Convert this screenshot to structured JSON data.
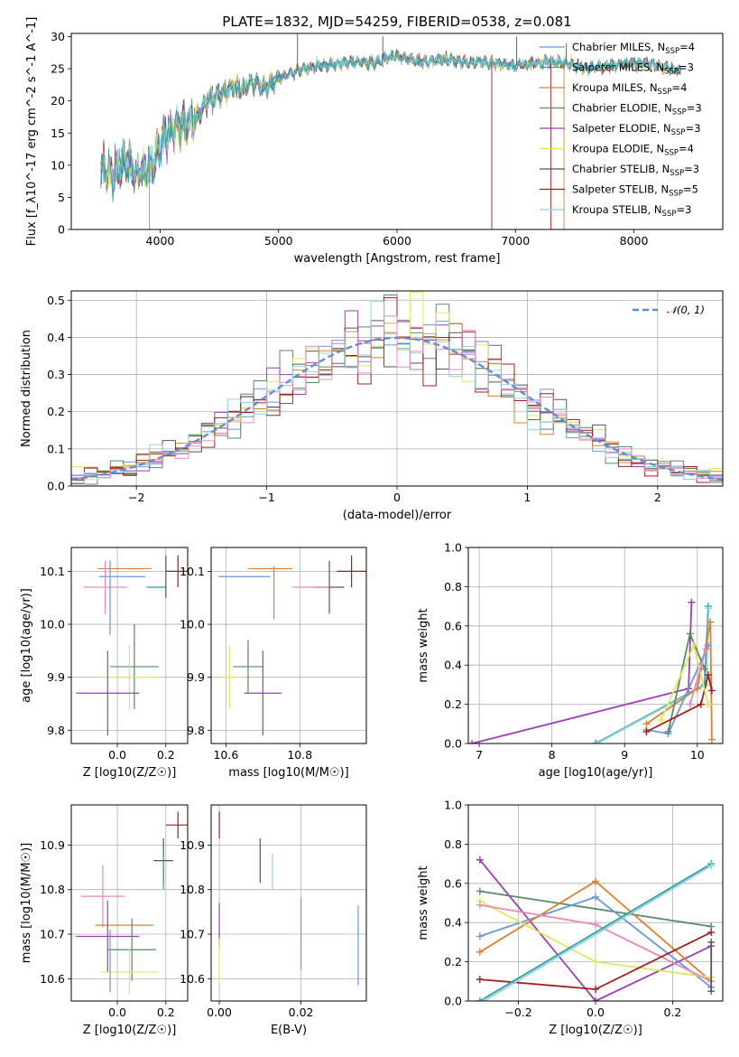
{
  "figure_title": "PLATE=1832, MJD=54259, FIBERID=0538, z=0.081",
  "colors": {
    "Chabrier MILES": "#6b96d9",
    "Salpeter MILES": "#2f9fa8",
    "Kroupa MILES": "#e07f2a",
    "Chabrier ELODIE": "#5a8a68",
    "Salpeter ELODIE": "#9b3fb3",
    "Kroupa ELODIE": "#d9ea5a",
    "Chabrier STELIB": "#555555",
    "Salpeter STELIB": "#a61c1c",
    "Kroupa STELIB": "#8fd4dc",
    "pink": "#e88ab8"
  },
  "chart_data": [
    {
      "id": "spectrum",
      "type": "line",
      "xlabel": "wavelength [Angstrom, rest frame]",
      "ylabel": "Flux [f_λ10^-17 erg cm^-2 s^-1 A^-1]",
      "xlim": [
        3250,
        8750
      ],
      "ylim": [
        0,
        30.5
      ],
      "xticks": [
        4000,
        5000,
        6000,
        7000,
        8000
      ],
      "yticks": [
        0,
        5,
        10,
        15,
        20,
        25,
        30
      ],
      "legend_position": "right",
      "legend": [
        {
          "label": "Chabrier MILES, N",
          "sub": "SSP",
          "tail": "=4",
          "color": "#6b96d9"
        },
        {
          "label": "Salpeter MILES, N",
          "sub": "SSP",
          "tail": "=3",
          "color": "#2f9fa8"
        },
        {
          "label": "Kroupa MILES, N",
          "sub": "SSP",
          "tail": "=4",
          "color": "#e07f2a"
        },
        {
          "label": "Chabrier ELODIE, N",
          "sub": "SSP",
          "tail": "=3",
          "color": "#5a8a68"
        },
        {
          "label": "Salpeter ELODIE, N",
          "sub": "SSP",
          "tail": "=3",
          "color": "#9b3fb3"
        },
        {
          "label": "Kroupa ELODIE, N",
          "sub": "SSP",
          "tail": "=4",
          "color": "#d9ea5a"
        },
        {
          "label": "Chabrier STELIB, N",
          "sub": "SSP",
          "tail": "=3",
          "color": "#555555"
        },
        {
          "label": "Salpeter STELIB, N",
          "sub": "SSP",
          "tail": "=5",
          "color": "#a61c1c"
        },
        {
          "label": "Kroupa STELIB, N",
          "sub": "SSP",
          "tail": "=3",
          "color": "#8fd4dc"
        }
      ],
      "envelope": {
        "x": [
          3500,
          3600,
          3700,
          3800,
          3900,
          3950,
          4000,
          4100,
          4200,
          4300,
          4400,
          4500,
          4600,
          4700,
          4800,
          4900,
          5000,
          5200,
          5400,
          5600,
          5800,
          6000,
          6200,
          6400,
          6600,
          6800,
          7000,
          7200,
          7400,
          7600,
          7800,
          8000,
          8200,
          8400
        ],
        "y": [
          10.0,
          8.5,
          10.5,
          9.0,
          9.5,
          10.5,
          13.5,
          15.5,
          16.5,
          17.0,
          20.0,
          21.0,
          22.0,
          22.0,
          23.0,
          22.0,
          23.5,
          25.0,
          25.5,
          26.0,
          26.0,
          27.0,
          26.0,
          26.5,
          26.0,
          26.0,
          25.5,
          26.0,
          26.0,
          25.0,
          25.5,
          26.0,
          25.5,
          24.5
        ]
      },
      "spikes": [
        {
          "x": 5160,
          "top": 30.5,
          "color": "#555555"
        },
        {
          "x": 5880,
          "top": 30.0,
          "color": "#555555"
        },
        {
          "x": 7010,
          "top": 30.0,
          "color": "#555555"
        },
        {
          "x": 7430,
          "top": 29.0,
          "color": "#555555"
        },
        {
          "x": 3910,
          "bottom": 0,
          "color": "#e07f2a"
        },
        {
          "x": 6800,
          "bottom": 0,
          "color": "#a61c1c"
        },
        {
          "x": 7300,
          "bottom": 0,
          "color": "#a61c1c"
        },
        {
          "x": 7410,
          "bottom": 0,
          "color": "#e07f2a"
        }
      ]
    },
    {
      "id": "residual-histogram",
      "type": "histogram",
      "xlabel": "(data-model)/error",
      "ylabel": "Normed distribution",
      "xlim": [
        -2.5,
        2.5
      ],
      "ylim": [
        0,
        0.525
      ],
      "xticks": [
        -2,
        -1,
        0,
        1,
        2
      ],
      "yticks": [
        0.0,
        0.1,
        0.2,
        0.3,
        0.4,
        0.5
      ],
      "grid": true,
      "legend_position": "top-right",
      "legend": [
        {
          "label": "𝒩(0, 1)",
          "style": "dashed",
          "color": "#5b8fd8"
        }
      ],
      "bins": 50,
      "gaussian": {
        "mu": 0,
        "sigma": 1,
        "color": "#5b8fd8"
      },
      "series_colors": [
        "#6b96d9",
        "#e07f2a",
        "#5a8a68",
        "#9b3fb3",
        "#d9ea5a",
        "#555555",
        "#a61c1c",
        "#8fd4dc",
        "#e88ab8"
      ]
    },
    {
      "id": "age-vs-Z",
      "type": "errorbar",
      "xlabel": "Z [log10(Z/Z☉)]",
      "ylabel": "age [log10(age/yr)]",
      "xlim": [
        -0.19,
        0.29
      ],
      "ylim": [
        9.775,
        10.145
      ],
      "xticks": [
        0.0,
        0.2
      ],
      "yticks": [
        9.8,
        9.9,
        10.0,
        10.1
      ],
      "grid": true,
      "points": [
        {
          "x": 0.03,
          "y": 10.105,
          "xerr": 0.11,
          "yerr": 0.0,
          "color": "#e07f2a"
        },
        {
          "x": 0.02,
          "y": 10.09,
          "xerr": 0.095,
          "yerr": 0.0,
          "color": "#6b96d9"
        },
        {
          "x": 0.16,
          "y": 10.07,
          "xerr": 0.04,
          "yerr": 0.0,
          "color": "#2f9fa8"
        },
        {
          "x": 0.25,
          "y": 10.1,
          "xerr": 0.05,
          "yerr": 0.03,
          "color": "#a61c1c"
        },
        {
          "x": 0.2,
          "y": 10.09,
          "xerr": 0.0,
          "yerr": 0.04,
          "color": "#555555"
        },
        {
          "x": -0.05,
          "y": 10.07,
          "xerr": 0.09,
          "yerr": 0.05,
          "color": "#e88ab8"
        },
        {
          "x": -0.03,
          "y": 10.05,
          "xerr": 0.0,
          "yerr": 0.07,
          "color": "#6b96d9"
        },
        {
          "x": 0.07,
          "y": 9.92,
          "xerr": 0.1,
          "yerr": 0.08,
          "color": "#5a8a68"
        },
        {
          "x": 0.05,
          "y": 9.9,
          "xerr": 0.12,
          "yerr": 0.06,
          "color": "#d9ea5a"
        },
        {
          "x": -0.04,
          "y": 9.87,
          "xerr": 0.13,
          "yerr": 0.08,
          "color": "#9b3fb3"
        }
      ]
    },
    {
      "id": "age-vs-mass",
      "type": "errorbar",
      "xlabel": "mass [log10(M/M☉)]",
      "ylabel": "",
      "xlim": [
        10.56,
        10.98
      ],
      "ylim": [
        9.775,
        10.145
      ],
      "xticks": [
        10.6,
        10.8
      ],
      "yticks": [
        9.8,
        9.9,
        10.0,
        10.1
      ],
      "grid": true,
      "points": [
        {
          "x": 10.72,
          "y": 10.105,
          "xerr": 0.06,
          "yerr": 0.0,
          "color": "#e07f2a"
        },
        {
          "x": 10.65,
          "y": 10.09,
          "xerr": 0.07,
          "yerr": 0.0,
          "color": "#6b96d9"
        },
        {
          "x": 10.94,
          "y": 10.1,
          "xerr": 0.04,
          "yerr": 0.03,
          "color": "#a61c1c"
        },
        {
          "x": 10.88,
          "y": 10.07,
          "xerr": 0.04,
          "yerr": 0.05,
          "color": "#555555"
        },
        {
          "x": 10.83,
          "y": 10.07,
          "xerr": 0.05,
          "yerr": 0.0,
          "color": "#e88ab8"
        },
        {
          "x": 10.73,
          "y": 10.06,
          "xerr": 0.0,
          "yerr": 0.05,
          "color": "#e07f2a"
        },
        {
          "x": 10.66,
          "y": 9.92,
          "xerr": 0.04,
          "yerr": 0.05,
          "color": "#5a8a68"
        },
        {
          "x": 10.61,
          "y": 9.9,
          "xerr": 0.03,
          "yerr": 0.06,
          "color": "#d9ea5a"
        },
        {
          "x": 10.7,
          "y": 9.87,
          "xerr": 0.05,
          "yerr": 0.08,
          "color": "#9b3fb3"
        }
      ]
    },
    {
      "id": "massweight-vs-age",
      "type": "line",
      "xlabel": "age [log10(age/yr)]",
      "ylabel": "mass weight",
      "xlim": [
        6.85,
        10.35
      ],
      "ylim": [
        0,
        1.0
      ],
      "xticks": [
        7,
        8,
        9,
        10
      ],
      "yticks": [
        0.0,
        0.2,
        0.4,
        0.6,
        0.8,
        1.0
      ],
      "grid": true,
      "series": [
        {
          "color": "#9b3fb3",
          "x": [
            6.9,
            9.88,
            9.92
          ],
          "y": [
            0.0,
            0.28,
            0.72
          ]
        },
        {
          "color": "#2f9fa8",
          "x": [
            8.6,
            10.1,
            10.15
          ],
          "y": [
            0.0,
            0.3,
            0.7
          ]
        },
        {
          "color": "#8fd4dc",
          "x": [
            8.62,
            10.12,
            10.16
          ],
          "y": [
            0.0,
            0.3,
            0.69
          ]
        },
        {
          "color": "#e07f2a",
          "x": [
            9.3,
            10.0,
            10.18,
            10.2
          ],
          "y": [
            0.1,
            0.28,
            0.62,
            0.02
          ]
        },
        {
          "color": "#6b96d9",
          "x": [
            9.3,
            9.6,
            10.15
          ],
          "y": [
            0.07,
            0.05,
            0.5
          ]
        },
        {
          "color": "#5a8a68",
          "x": [
            9.6,
            9.9,
            10.1
          ],
          "y": [
            0.06,
            0.56,
            0.38
          ]
        },
        {
          "color": "#a61c1c",
          "x": [
            9.3,
            10.05,
            10.15,
            10.2
          ],
          "y": [
            0.06,
            0.2,
            0.35,
            0.27
          ]
        },
        {
          "color": "#d9ea5a",
          "x": [
            9.5,
            9.95,
            10.15
          ],
          "y": [
            0.12,
            0.5,
            0.2
          ]
        },
        {
          "color": "#e88ab8",
          "x": [
            9.9,
            10.12
          ],
          "y": [
            0.2,
            0.48
          ]
        }
      ]
    },
    {
      "id": "mass-vs-Z",
      "type": "errorbar",
      "xlabel": "Z [log10(Z/Z☉)]",
      "ylabel": "mass [log10(M/M☉)]",
      "xlim": [
        -0.19,
        0.29
      ],
      "ylim": [
        10.55,
        10.99
      ],
      "xticks": [
        0.0,
        0.2
      ],
      "yticks": [
        10.6,
        10.7,
        10.8,
        10.9
      ],
      "grid": true,
      "points": [
        {
          "x": 0.25,
          "y": 10.945,
          "xerr": 0.05,
          "yerr": 0.03,
          "color": "#a61c1c"
        },
        {
          "x": 0.19,
          "y": 10.865,
          "xerr": 0.04,
          "yerr": 0.05,
          "color": "#555555"
        },
        {
          "x": 0.19,
          "y": 10.84,
          "xerr": 0.0,
          "yerr": 0.04,
          "color": "#2f9fa8"
        },
        {
          "x": -0.06,
          "y": 10.785,
          "xerr": 0.09,
          "yerr": 0.07,
          "color": "#e88ab8"
        },
        {
          "x": 0.03,
          "y": 10.72,
          "xerr": 0.12,
          "yerr": 0.0,
          "color": "#e07f2a"
        },
        {
          "x": -0.04,
          "y": 10.695,
          "xerr": 0.13,
          "yerr": 0.08,
          "color": "#9b3fb3"
        },
        {
          "x": 0.06,
          "y": 10.665,
          "xerr": 0.1,
          "yerr": 0.07,
          "color": "#5a8a68"
        },
        {
          "x": 0.05,
          "y": 10.615,
          "xerr": 0.12,
          "yerr": 0.05,
          "color": "#d9ea5a"
        },
        {
          "x": -0.03,
          "y": 10.64,
          "xerr": 0.0,
          "yerr": 0.07,
          "color": "#6b96d9"
        }
      ]
    },
    {
      "id": "mass-vs-EBV",
      "type": "errorbar",
      "xlabel": "E(B-V)",
      "ylabel": "",
      "xlim": [
        -0.002,
        0.036
      ],
      "ylim": [
        10.55,
        10.99
      ],
      "xticks": [
        0.0,
        0.02
      ],
      "yticks": [
        10.6,
        10.7,
        10.8,
        10.9
      ],
      "grid": true,
      "points": [
        {
          "x": 0.0,
          "y": 10.945,
          "xerr": 0.0,
          "yerr": 0.03,
          "color": "#a61c1c"
        },
        {
          "x": 0.01,
          "y": 10.865,
          "xerr": 0.0,
          "yerr": 0.05,
          "color": "#555555"
        },
        {
          "x": 0.013,
          "y": 10.84,
          "xerr": 0.0,
          "yerr": 0.04,
          "color": "#8fd4dc"
        },
        {
          "x": 0.0,
          "y": 10.72,
          "xerr": 0.0,
          "yerr": 0.05,
          "color": "#9b3fb3"
        },
        {
          "x": 0.0,
          "y": 10.64,
          "xerr": 0.0,
          "yerr": 0.05,
          "color": "#d9ea5a"
        },
        {
          "x": 0.02,
          "y": 10.7,
          "xerr": 0.0,
          "yerr": 0.08,
          "color": "#e07f2a"
        },
        {
          "x": 0.034,
          "y": 10.675,
          "xerr": 0.0,
          "yerr": 0.09,
          "color": "#6b96d9"
        }
      ]
    },
    {
      "id": "massweight-vs-Z",
      "type": "line",
      "xlabel": "Z [log10(Z/Z☉)]",
      "ylabel": "mass weight",
      "xlim": [
        -0.33,
        0.33
      ],
      "ylim": [
        0,
        1.0
      ],
      "xticks": [
        -0.2,
        0.0,
        0.2
      ],
      "yticks": [
        0.0,
        0.2,
        0.4,
        0.6,
        0.8,
        1.0
      ],
      "grid": true,
      "series": [
        {
          "color": "#9b3fb3",
          "x": [
            -0.3,
            0.0,
            0.3
          ],
          "y": [
            0.72,
            0.0,
            0.28
          ]
        },
        {
          "color": "#5a8a68",
          "x": [
            -0.3,
            0.3
          ],
          "y": [
            0.56,
            0.38
          ]
        },
        {
          "color": "#6b96d9",
          "x": [
            -0.3,
            0.0,
            0.3
          ],
          "y": [
            0.33,
            0.53,
            0.07
          ]
        },
        {
          "color": "#e07f2a",
          "x": [
            -0.3,
            0.0,
            0.3
          ],
          "y": [
            0.25,
            0.61,
            0.1
          ]
        },
        {
          "color": "#d9ea5a",
          "x": [
            -0.3,
            0.0,
            0.3
          ],
          "y": [
            0.51,
            0.2,
            0.12
          ]
        },
        {
          "color": "#e88ab8",
          "x": [
            -0.3,
            0.0,
            0.3
          ],
          "y": [
            0.49,
            0.39,
            0.1
          ]
        },
        {
          "color": "#a61c1c",
          "x": [
            -0.3,
            0.0,
            0.3
          ],
          "y": [
            0.11,
            0.06,
            0.35
          ]
        },
        {
          "color": "#2f9fa8",
          "x": [
            -0.3,
            0.3
          ],
          "y": [
            0.0,
            0.7
          ]
        },
        {
          "color": "#8fd4dc",
          "x": [
            -0.29,
            0.3
          ],
          "y": [
            0.0,
            0.69
          ]
        },
        {
          "color": "#555555",
          "x": [
            0.3,
            0.3
          ],
          "y": [
            0.3,
            0.05
          ]
        }
      ]
    }
  ]
}
